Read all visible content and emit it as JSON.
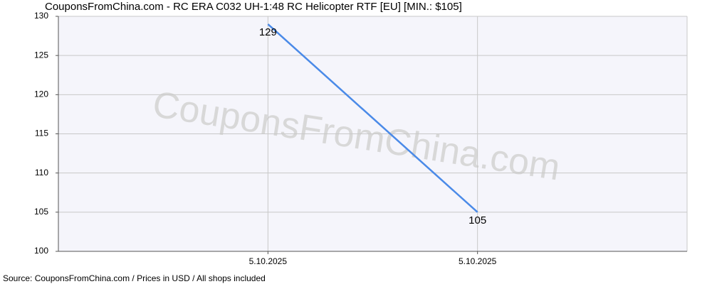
{
  "chart_data": {
    "type": "line",
    "title": "CouponsFromChina.com - RC ERA C032 UH-1:48 RC Helicopter RTF [EU] [MIN.: $105]",
    "watermark": "CouponsFromChina.com",
    "source": "Source: CouponsFromChina.com / Prices in USD / All shops included",
    "categories": [
      "5.10.2025",
      "5.10.2025"
    ],
    "values": [
      129,
      105
    ],
    "color": "#4a8ae8",
    "ylim": [
      100,
      130
    ],
    "yticks": [
      100,
      105,
      110,
      115,
      120,
      125,
      130
    ],
    "grid": true
  }
}
